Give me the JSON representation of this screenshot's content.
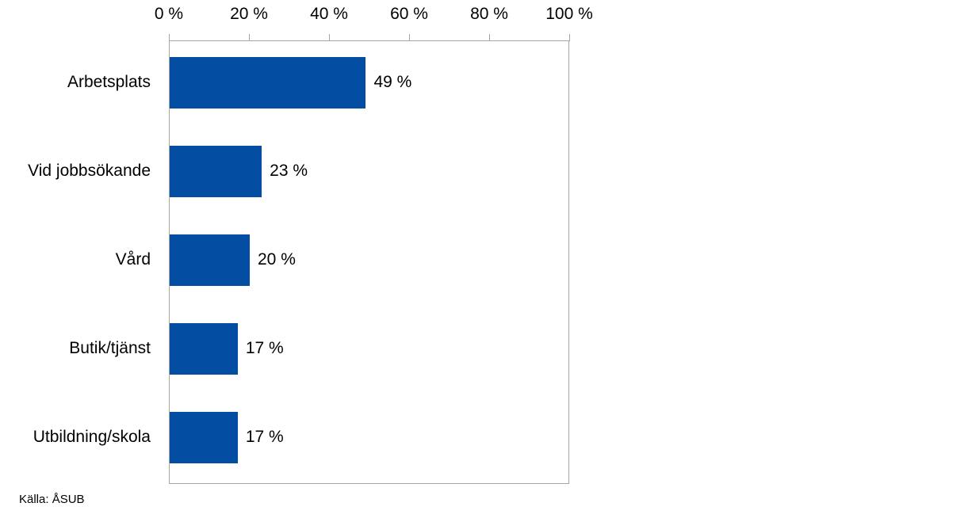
{
  "chart_data": {
    "type": "bar",
    "orientation": "horizontal",
    "title": "",
    "xlabel": "",
    "ylabel": "",
    "xlim": [
      0,
      100
    ],
    "x_ticks": [
      "0 %",
      "20 %",
      "40 %",
      "60 %",
      "80 %",
      "100 %"
    ],
    "x_axis_position": "top",
    "grid": false,
    "legend": null,
    "categories": [
      "Arbetsplats",
      "Vid jobbsökande",
      "Vård",
      "Butik/tjänst",
      "Utbildning/skola"
    ],
    "values": [
      49,
      23,
      20,
      17,
      17
    ],
    "value_labels": [
      "49 %",
      "23 %",
      "20 %",
      "17 %",
      "17 %"
    ],
    "bar_color": "#034ea2",
    "source": "Källa: ÅSUB"
  }
}
